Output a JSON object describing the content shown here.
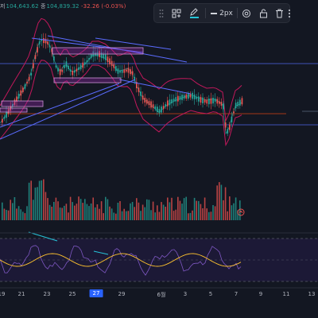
{
  "header": {
    "ohlc_label_close": "저",
    "ohlc_low": "104,643.62",
    "ohlc_label_final": "종",
    "ohlc_close": "104,839.32",
    "ohlc_change": "-32.26 (-0.03%)"
  },
  "toolbar": {
    "line_width_label": "2px",
    "items": [
      "drag-handle-icon",
      "template-icon",
      "pencil-icon",
      "line-width",
      "settings-icon",
      "lock-icon",
      "delete-icon",
      "more-icon"
    ]
  },
  "xaxis": {
    "labels": [
      "19",
      "21",
      "23",
      "25",
      "27",
      "29",
      "6월",
      "3",
      "5",
      "7",
      "9",
      "11",
      "13"
    ],
    "highlighted": "27"
  },
  "colors": {
    "background": "#131722",
    "up": "#26a69a",
    "down": "#ef5350",
    "band": "#c2185b",
    "trendline": "#5b6cff",
    "highlight": "#2962ff"
  }
}
